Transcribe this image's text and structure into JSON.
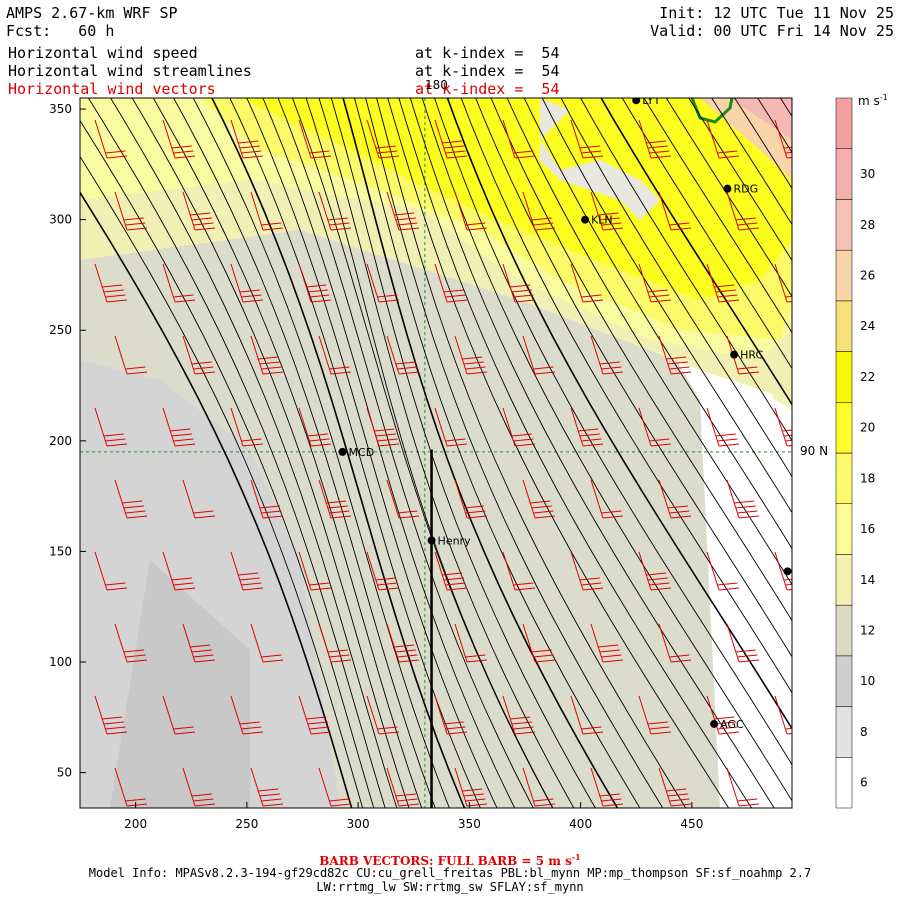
{
  "header": {
    "model": "AMPS 2.67-km WRF SP",
    "forecast": "Fcst:   60 h",
    "init": "Init: 12 UTC Tue 11 Nov 25",
    "valid": "Valid: 00 UTC Fri 14 Nov 25",
    "line1_field": "Horizontal wind speed",
    "line1_level": "at k-index =  54",
    "line2_field": "Horizontal wind streamlines",
    "line2_level": "at k-index =  54",
    "line3_field": "Horizontal wind vectors",
    "line3_level": "at k-index =  54"
  },
  "colors": {
    "vector_text": "#e00000",
    "streamline": "#000000",
    "gridline": "#2a8a2a",
    "station": "#000000"
  },
  "chart_data": {
    "type": "heatmap",
    "title": "Horizontal wind speed",
    "xlabel": "",
    "ylabel": "",
    "xlim": [
      175,
      495
    ],
    "ylim": [
      34,
      355
    ],
    "xticks": [
      200,
      250,
      300,
      350,
      400,
      450
    ],
    "yticks": [
      50,
      100,
      150,
      200,
      250,
      300,
      350
    ],
    "colorbar": {
      "units": "m s",
      "units_exp": "-1",
      "levels": [
        6,
        8,
        10,
        12,
        14,
        16,
        18,
        20,
        22,
        24,
        26,
        28,
        30
      ],
      "colors": [
        "#ffffff",
        "#e2e2e2",
        "#cfcfcf",
        "#dcdcc4",
        "#f2f2b0",
        "#fbfb98",
        "#fafa6a",
        "#fdfd28",
        "#f8f800",
        "#f5e07a",
        "#f8d4a8",
        "#f5c2b8",
        "#f5aeae",
        "#f3a0a0"
      ]
    },
    "grid_labels": {
      "lon": "180",
      "lat": "90 N"
    },
    "grid_lines": {
      "x": 330,
      "y": 195
    },
    "stations": [
      {
        "name": "LYT",
        "x": 425,
        "y": 354
      },
      {
        "name": "RDG",
        "x": 466,
        "y": 314
      },
      {
        "name": "KLN",
        "x": 402,
        "y": 300
      },
      {
        "name": "HRC",
        "x": 469,
        "y": 239
      },
      {
        "name": "MCD",
        "x": 293,
        "y": 195
      },
      {
        "name": "Henry",
        "x": 333,
        "y": 155
      },
      {
        "name": "AGC",
        "x": 460,
        "y": 72
      },
      {
        "name": "",
        "x": 493,
        "y": 141
      }
    ]
  },
  "footer": {
    "barb_label": "BARB VECTORS:  FULL BARB = 5 m s",
    "barb_exp": "-1",
    "model_info": "Model Info: MPASv8.2.3-194-gf29cd82c CU:cu_grell_freitas PBL:bl_mynn MP:mp_thompson SF:sf_noahmp 2.7",
    "model_info2": "LW:rrtmg_lw SW:rrtmg_sw SFLAY:sf_mynn"
  }
}
